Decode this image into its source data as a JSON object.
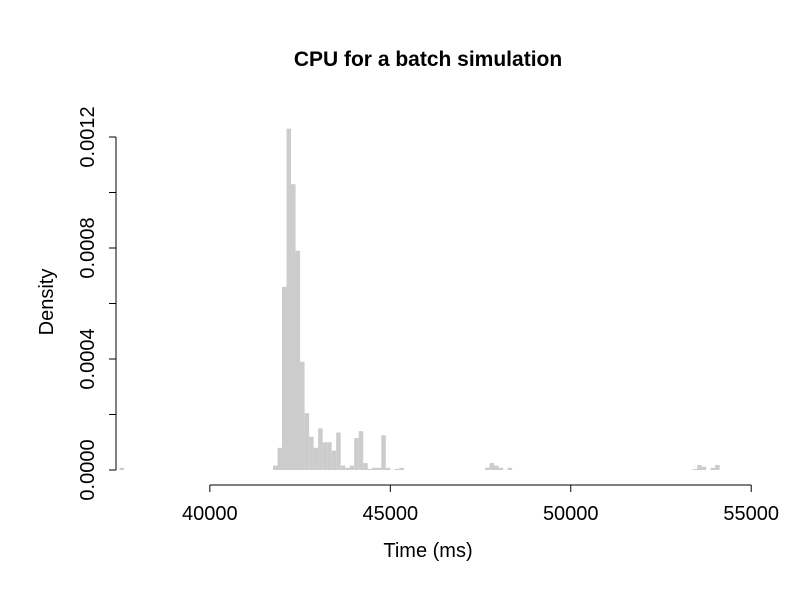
{
  "chart_data": {
    "type": "bar",
    "title": "CPU for a batch simulation",
    "xlabel": "Time (ms)",
    "ylabel": "Density",
    "bar_color": "#cccccc",
    "xlim": [
      37400,
      54800
    ],
    "ylim": [
      0,
      0.0012
    ],
    "x_ticks": [
      40000,
      45000,
      50000,
      55000
    ],
    "x_tick_labels": [
      "40000",
      "45000",
      "50000",
      "55000"
    ],
    "y_ticks": [
      0,
      0.0002,
      0.0004,
      0.0006,
      0.0008,
      0.001,
      0.0012
    ],
    "y_tick_labels": [
      "0.0000",
      "",
      "0.0004",
      "",
      "0.0008",
      "",
      "0.0012"
    ],
    "grid": false,
    "legend": "none",
    "bin_width": 125,
    "bins": [
      {
        "x0": 37500,
        "value": 8e-06
      },
      {
        "x0": 41750,
        "value": 1.6e-05
      },
      {
        "x0": 41875,
        "value": 8e-05
      },
      {
        "x0": 42000,
        "value": 0.00066
      },
      {
        "x0": 42125,
        "value": 0.00123
      },
      {
        "x0": 42250,
        "value": 0.00103
      },
      {
        "x0": 42375,
        "value": 0.00079
      },
      {
        "x0": 42500,
        "value": 0.00039
      },
      {
        "x0": 42625,
        "value": 0.000205
      },
      {
        "x0": 42750,
        "value": 0.00012
      },
      {
        "x0": 42875,
        "value": 8e-05
      },
      {
        "x0": 43000,
        "value": 0.00015
      },
      {
        "x0": 43125,
        "value": 0.0001
      },
      {
        "x0": 43250,
        "value": 0.0001
      },
      {
        "x0": 43375,
        "value": 7e-05
      },
      {
        "x0": 43500,
        "value": 0.000135
      },
      {
        "x0": 43625,
        "value": 1.6e-05
      },
      {
        "x0": 43750,
        "value": 8e-06
      },
      {
        "x0": 43875,
        "value": 1.6e-05
      },
      {
        "x0": 44000,
        "value": 0.000115
      },
      {
        "x0": 44125,
        "value": 0.00014
      },
      {
        "x0": 44250,
        "value": 2.5e-05
      },
      {
        "x0": 44375,
        "value": 4e-06
      },
      {
        "x0": 44500,
        "value": 8e-06
      },
      {
        "x0": 44625,
        "value": 8e-06
      },
      {
        "x0": 44750,
        "value": 0.000125
      },
      {
        "x0": 44875,
        "value": 8e-06
      },
      {
        "x0": 45125,
        "value": 4e-06
      },
      {
        "x0": 45250,
        "value": 8e-06
      },
      {
        "x0": 47625,
        "value": 8e-06
      },
      {
        "x0": 47750,
        "value": 2.5e-05
      },
      {
        "x0": 47875,
        "value": 1.6e-05
      },
      {
        "x0": 48000,
        "value": 8e-06
      },
      {
        "x0": 48250,
        "value": 8e-06
      },
      {
        "x0": 53375,
        "value": 4e-06
      },
      {
        "x0": 53500,
        "value": 1.8e-05
      },
      {
        "x0": 53625,
        "value": 1.2e-05
      },
      {
        "x0": 53875,
        "value": 8e-06
      },
      {
        "x0": 54000,
        "value": 1.8e-05
      }
    ]
  }
}
